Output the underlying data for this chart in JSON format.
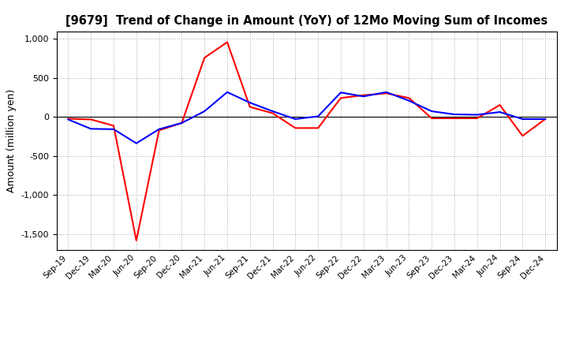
{
  "title": "[9679]  Trend of Change in Amount (YoY) of 12Mo Moving Sum of Incomes",
  "ylabel": "Amount (million yen)",
  "xlabels": [
    "Sep-19",
    "Dec-19",
    "Mar-20",
    "Jun-20",
    "Sep-20",
    "Dec-20",
    "Mar-21",
    "Jun-21",
    "Sep-21",
    "Dec-21",
    "Mar-22",
    "Jun-22",
    "Sep-22",
    "Dec-22",
    "Mar-23",
    "Jun-23",
    "Sep-23",
    "Dec-23",
    "Mar-24",
    "Jun-24",
    "Sep-24",
    "Dec-24"
  ],
  "ordinary_income": [
    -30,
    -150,
    -155,
    -335,
    -155,
    -75,
    75,
    320,
    185,
    75,
    -25,
    10,
    315,
    265,
    320,
    210,
    75,
    35,
    30,
    65,
    -25,
    -25
  ],
  "net_income": [
    -20,
    -30,
    -110,
    -1580,
    -170,
    -75,
    760,
    960,
    130,
    50,
    -140,
    -140,
    245,
    280,
    305,
    245,
    -15,
    -15,
    -15,
    155,
    -240,
    -25
  ],
  "ylim": [
    -1700,
    1100
  ],
  "yticks": [
    -1500,
    -1000,
    -500,
    0,
    500,
    1000
  ],
  "ordinary_color": "#0000ff",
  "net_color": "#ff0000",
  "background_color": "#ffffff",
  "grid_color": "#aaaaaa",
  "line_width": 1.5
}
